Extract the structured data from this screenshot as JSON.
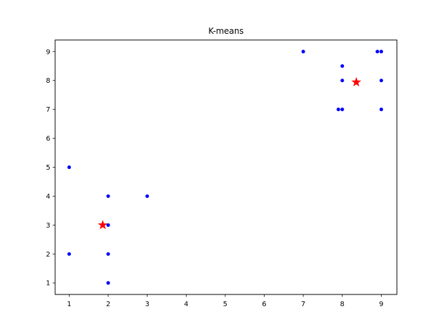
{
  "chart_data": {
    "type": "scatter",
    "title": "K-means",
    "xlabel": "",
    "ylabel": "",
    "xlim": [
      0.64,
      9.4
    ],
    "ylim": [
      0.6,
      9.4
    ],
    "x_ticks": [
      1,
      2,
      3,
      4,
      5,
      6,
      7,
      8,
      9
    ],
    "y_ticks": [
      1,
      2,
      3,
      4,
      5,
      6,
      7,
      8,
      9
    ],
    "grid": false,
    "series": [
      {
        "marker": "dot",
        "color": "#0000ff",
        "points": [
          [
            1,
            5
          ],
          [
            1,
            2
          ],
          [
            2,
            4
          ],
          [
            2,
            3
          ],
          [
            2,
            2
          ],
          [
            2,
            1
          ],
          [
            3,
            4
          ],
          [
            7,
            9
          ],
          [
            8,
            8.5
          ],
          [
            8,
            8
          ],
          [
            7.9,
            7
          ],
          [
            8,
            7
          ],
          [
            8.9,
            9
          ],
          [
            9,
            9
          ],
          [
            9,
            8
          ],
          [
            9,
            7
          ]
        ]
      },
      {
        "marker": "star",
        "color": "#ff0000",
        "points": [
          [
            1.86,
            3.0
          ],
          [
            8.36,
            7.94
          ]
        ]
      }
    ]
  }
}
